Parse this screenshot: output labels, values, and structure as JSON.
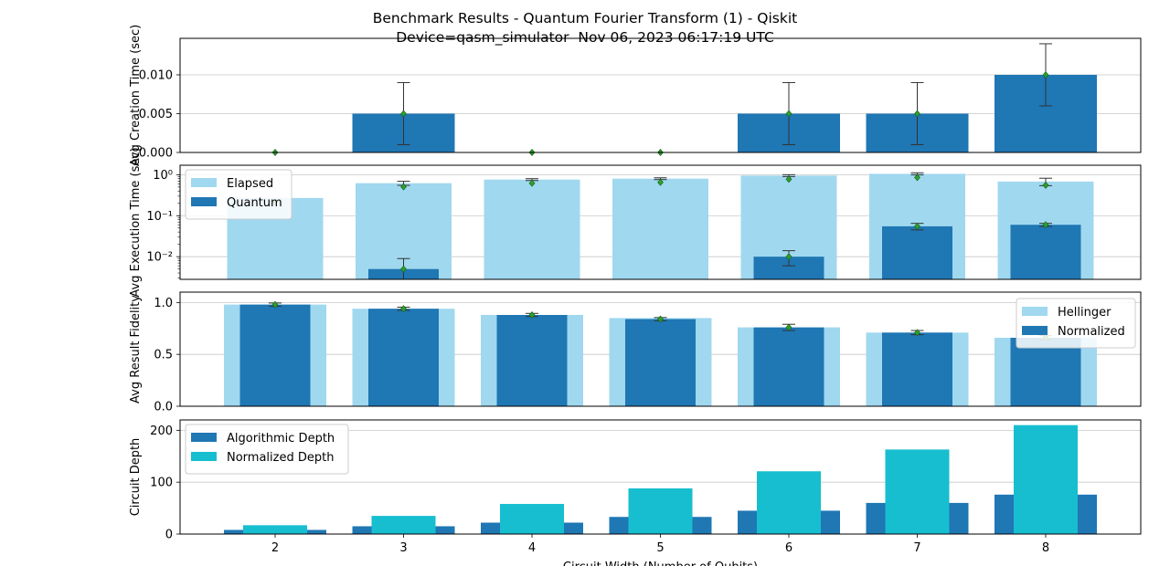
{
  "title": {
    "line1": "Benchmark Results - Quantum Fourier Transform (1) - Qiskit",
    "line2": "Device=qasm_simulator  Nov 06, 2023 06:17:19 UTC"
  },
  "colors": {
    "dark_blue": "#1f77b4",
    "light_blue": "#a0d8ef",
    "cyan": "#17becf",
    "marker": "#2ca02c",
    "grid": "#c8c8c8",
    "errorbar": "#333333"
  },
  "chart_data": [
    {
      "type": "bar",
      "id": "creation",
      "ylabel": "Avg Creation Time (sec)",
      "x": [
        2,
        3,
        4,
        5,
        6,
        7,
        8
      ],
      "yticks": [
        "0.000",
        "0.005",
        "0.010"
      ],
      "ylim": [
        0,
        0.0147
      ],
      "series": [
        {
          "values": [
            0,
            0.005,
            0,
            0,
            0.005,
            0.005,
            0.01
          ],
          "error": [
            0,
            0.004,
            0,
            0,
            0.004,
            0.004,
            0.004
          ]
        }
      ]
    },
    {
      "type": "bar",
      "id": "execution",
      "ylabel": "Avg Execution Time (sec)",
      "yscale": "log",
      "x": [
        2,
        3,
        4,
        5,
        6,
        7,
        8
      ],
      "yticks": [
        "10⁻²",
        "10⁻¹",
        "10⁰"
      ],
      "ylim": [
        0.0028,
        1.7
      ],
      "legend": "upper-left",
      "series": [
        {
          "name": "Elapsed",
          "values": [
            0.27,
            0.62,
            0.76,
            0.8,
            0.95,
            1.05,
            0.68
          ],
          "error": [
            0,
            0.07,
            0.04,
            0.04,
            0.05,
            0.06,
            0.14
          ]
        },
        {
          "name": "Quantum",
          "values": [
            null,
            0.005,
            null,
            null,
            0.01,
            0.055,
            0.06
          ],
          "error": [
            0,
            0.004,
            0,
            0,
            0.004,
            0.01,
            0.005
          ]
        }
      ]
    },
    {
      "type": "bar",
      "id": "fidelity",
      "ylabel": "Avg Result Fidelity",
      "x": [
        2,
        3,
        4,
        5,
        6,
        7,
        8
      ],
      "yticks": [
        "0.0",
        "0.5",
        "1.0"
      ],
      "ylim": [
        0,
        1.1
      ],
      "legend": "upper-right",
      "series": [
        {
          "name": "Hellinger",
          "values": [
            0.98,
            0.94,
            0.88,
            0.85,
            0.76,
            0.71,
            0.66
          ]
        },
        {
          "name": "Normalized",
          "values": [
            0.98,
            0.94,
            0.88,
            0.84,
            0.76,
            0.71,
            0.66
          ],
          "error": [
            0.015,
            0.015,
            0.015,
            0.015,
            0.03,
            0.02,
            0.02
          ]
        }
      ]
    },
    {
      "type": "bar",
      "id": "depth",
      "ylabel": "Circuit Depth",
      "xlabel": "Circuit Width (Number of Qubits)",
      "x": [
        2,
        3,
        4,
        5,
        6,
        7,
        8
      ],
      "xticks": [
        "2",
        "3",
        "4",
        "5",
        "6",
        "7",
        "8"
      ],
      "yticks": [
        "0",
        "100",
        "200"
      ],
      "ylim": [
        0,
        220
      ],
      "legend": "upper-left",
      "series": [
        {
          "name": "Algorithmic Depth",
          "values": [
            8,
            15,
            22,
            33,
            45,
            60,
            76
          ]
        },
        {
          "name": "Normalized Depth",
          "values": [
            17,
            35,
            58,
            88,
            121,
            163,
            210
          ]
        }
      ]
    }
  ]
}
